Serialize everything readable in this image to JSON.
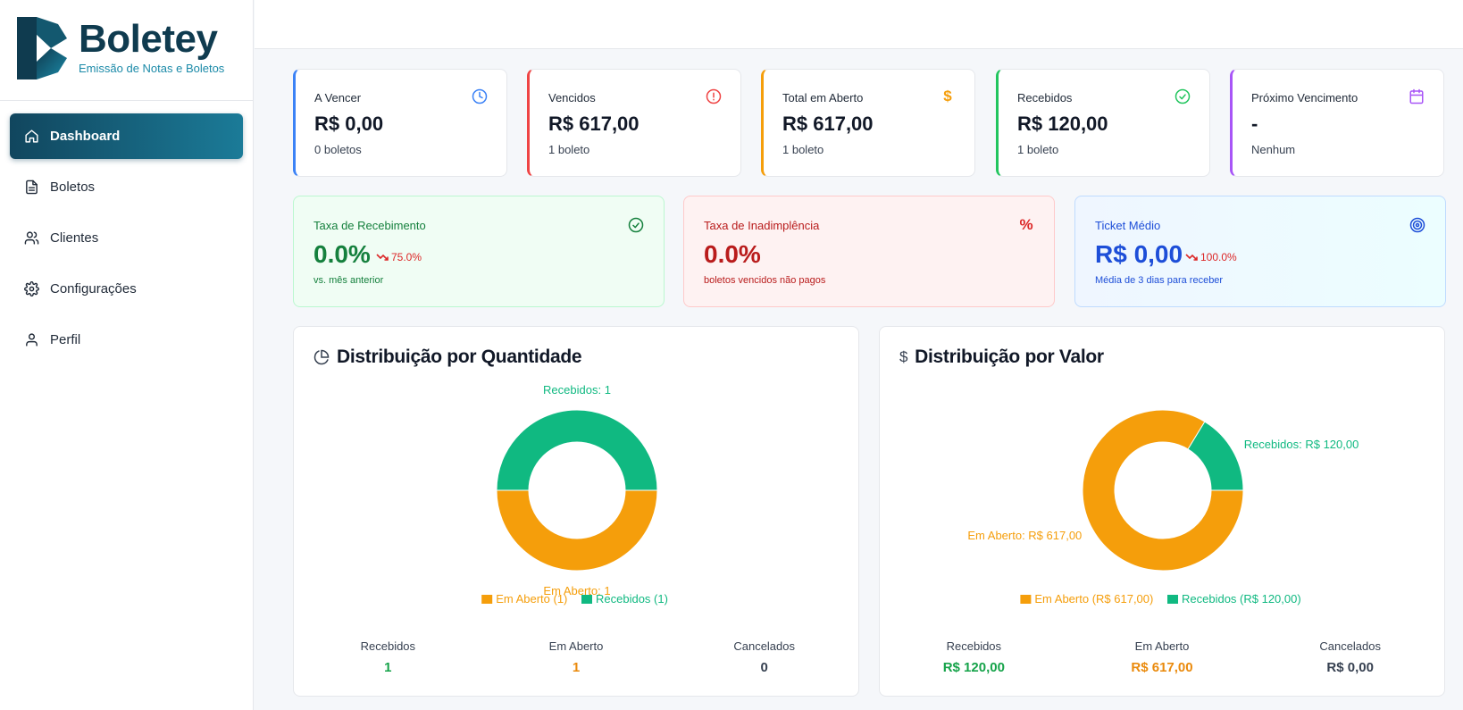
{
  "app": {
    "name": "Boletey",
    "tagline": "Emissão de Notas e Boletos"
  },
  "sidebar": {
    "items": [
      {
        "label": "Dashboard",
        "icon": "home-icon",
        "active": true
      },
      {
        "label": "Boletos",
        "icon": "file-text-icon"
      },
      {
        "label": "Clientes",
        "icon": "users-icon"
      },
      {
        "label": "Configurações",
        "icon": "gear-icon"
      },
      {
        "label": "Perfil",
        "icon": "user-icon"
      }
    ]
  },
  "stats": [
    {
      "label": "A Vencer",
      "value": "R$ 0,00",
      "sub": "0 boletos",
      "icon": "clock-icon",
      "color": "#3b82f6"
    },
    {
      "label": "Vencidos",
      "value": "R$ 617,00",
      "sub": "1 boleto",
      "icon": "alert-circle-icon",
      "color": "#ef4444"
    },
    {
      "label": "Total em Aberto",
      "value": "R$ 617,00",
      "sub": "1 boleto",
      "icon": "dollar-icon",
      "color": "#f59e0b"
    },
    {
      "label": "Recebidos",
      "value": "R$ 120,00",
      "sub": "1 boleto",
      "icon": "check-circle-icon",
      "color": "#22c55e"
    },
    {
      "label": "Próximo Vencimento",
      "value": "-",
      "sub": "Nenhum",
      "icon": "calendar-icon",
      "color": "#a855f7"
    }
  ],
  "rates": [
    {
      "label": "Taxa de Recebimento",
      "value": "0.0%",
      "trend": "75.0%",
      "sub": "vs. mês anterior",
      "icon": "check-circle-icon",
      "text_color": "#15803d",
      "bg": "#f0fdf4",
      "border": "#bbf7d0"
    },
    {
      "label": "Taxa de Inadimplência",
      "value": "0.0%",
      "sub": "boletos vencidos não pagos",
      "icon": "percent-icon",
      "text_color": "#b91c1c",
      "bg": "#fef2f2",
      "border": "#fecaca"
    },
    {
      "label": "Ticket Médio",
      "value": "R$ 0,00",
      "trend": "100.0%",
      "sub": "Média de 3 dias para receber",
      "icon": "target-icon",
      "text_color": "#1d4ed8",
      "bg": "#eff6ff",
      "border": "#bfdbfe"
    }
  ],
  "panels": [
    {
      "title": "Distribuição por Quantidade",
      "icon": "pie-chart-icon",
      "summary": [
        {
          "label": "Recebidos",
          "value": "1",
          "color": "#16a34a"
        },
        {
          "label": "Em Aberto",
          "value": "1",
          "color": "#ea8a0c"
        },
        {
          "label": "Cancelados",
          "value": "0",
          "color": "#374151"
        }
      ]
    },
    {
      "title": "Distribuição por Valor",
      "icon": "dollar-icon",
      "summary": [
        {
          "label": "Recebidos",
          "value": "R$ 120,00",
          "color": "#16a34a"
        },
        {
          "label": "Em Aberto",
          "value": "R$ 617,00",
          "color": "#ea8a0c"
        },
        {
          "label": "Cancelados",
          "value": "R$ 0,00",
          "color": "#374151"
        }
      ]
    }
  ],
  "chart_data": [
    {
      "type": "pie",
      "title": "Distribuição por Quantidade",
      "categories": [
        "Em Aberto",
        "Recebidos"
      ],
      "values": [
        1,
        1
      ],
      "colors": [
        "#f59e0b",
        "#10b981"
      ],
      "slice_labels": [
        "Em Aberto: 1",
        "Recebidos: 1"
      ],
      "legend": [
        "Em Aberto (1)",
        "Recebidos (1)"
      ],
      "legend_position": "bottom"
    },
    {
      "type": "pie",
      "title": "Distribuição por Valor",
      "categories": [
        "Em Aberto",
        "Recebidos"
      ],
      "values": [
        617,
        120
      ],
      "colors": [
        "#f59e0b",
        "#10b981"
      ],
      "slice_labels": [
        "Em Aberto: R$ 617,00",
        "Recebidos: R$ 120,00"
      ],
      "legend": [
        "Em Aberto (R$ 617,00)",
        "Recebidos (R$ 120,00)"
      ],
      "legend_position": "bottom"
    }
  ]
}
